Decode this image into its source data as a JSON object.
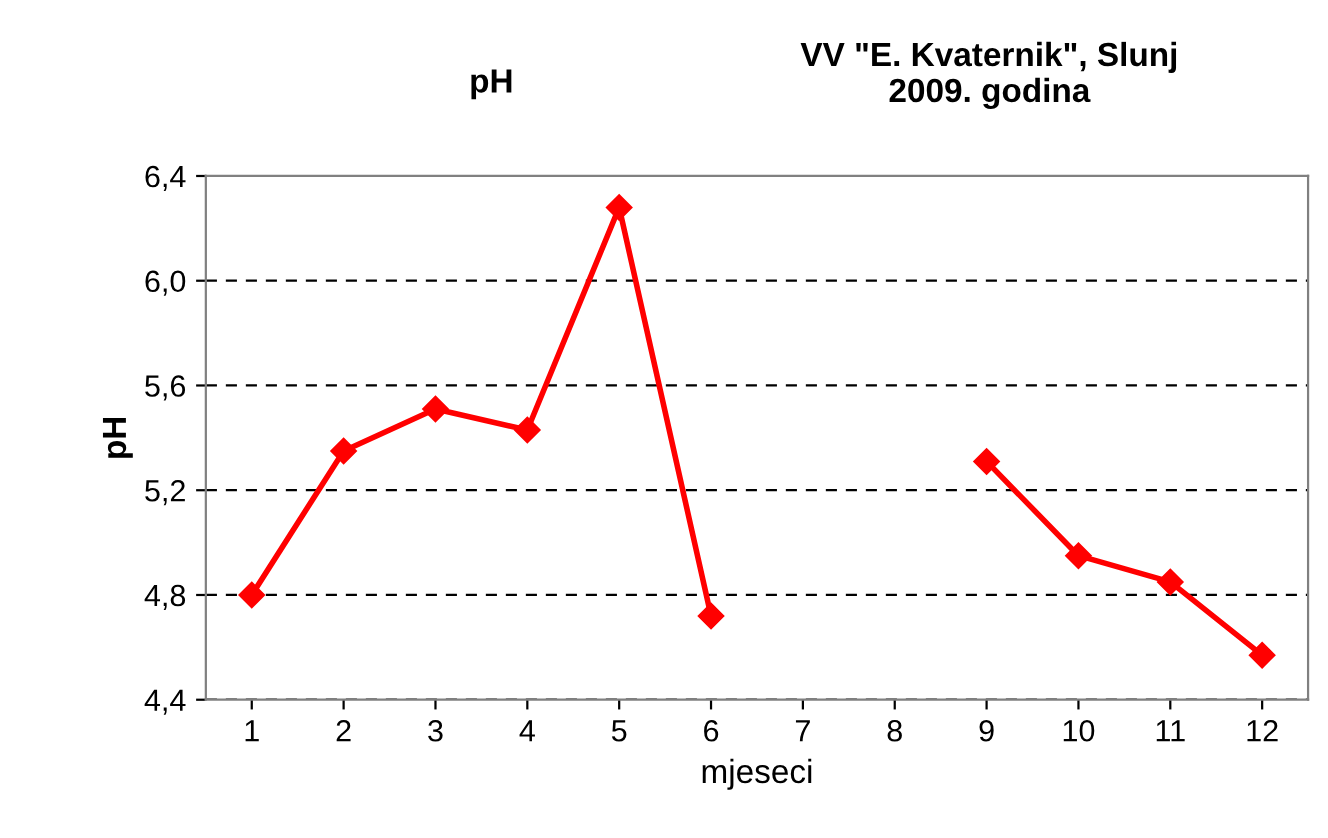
{
  "chart_data": {
    "type": "line",
    "title": "pH",
    "annotations": [
      "VV \"E. Kvaternik\", Slunj\n2009. godina"
    ],
    "xlabel": "mjeseci",
    "ylabel": "pH",
    "categories": [
      "1",
      "2",
      "3",
      "4",
      "5",
      "6",
      "7",
      "8",
      "9",
      "10",
      "11",
      "12"
    ],
    "series": [
      {
        "color": "#ff0000",
        "values": [
          4.8,
          5.35,
          5.51,
          5.43,
          6.28,
          4.72,
          null,
          null,
          5.31,
          4.95,
          4.85,
          4.57
        ]
      }
    ],
    "ylim": [
      4.4,
      6.4
    ],
    "yticks": [
      {
        "value": 4.4,
        "label": "4,4"
      },
      {
        "value": 4.8,
        "label": "4,8"
      },
      {
        "value": 5.2,
        "label": "5,2"
      },
      {
        "value": 5.6,
        "label": "5,6"
      },
      {
        "value": 6.0,
        "label": "6,0"
      },
      {
        "value": 6.4,
        "label": "6,4"
      }
    ],
    "grid": "y",
    "marker": "diamond",
    "line_style": "solid"
  }
}
